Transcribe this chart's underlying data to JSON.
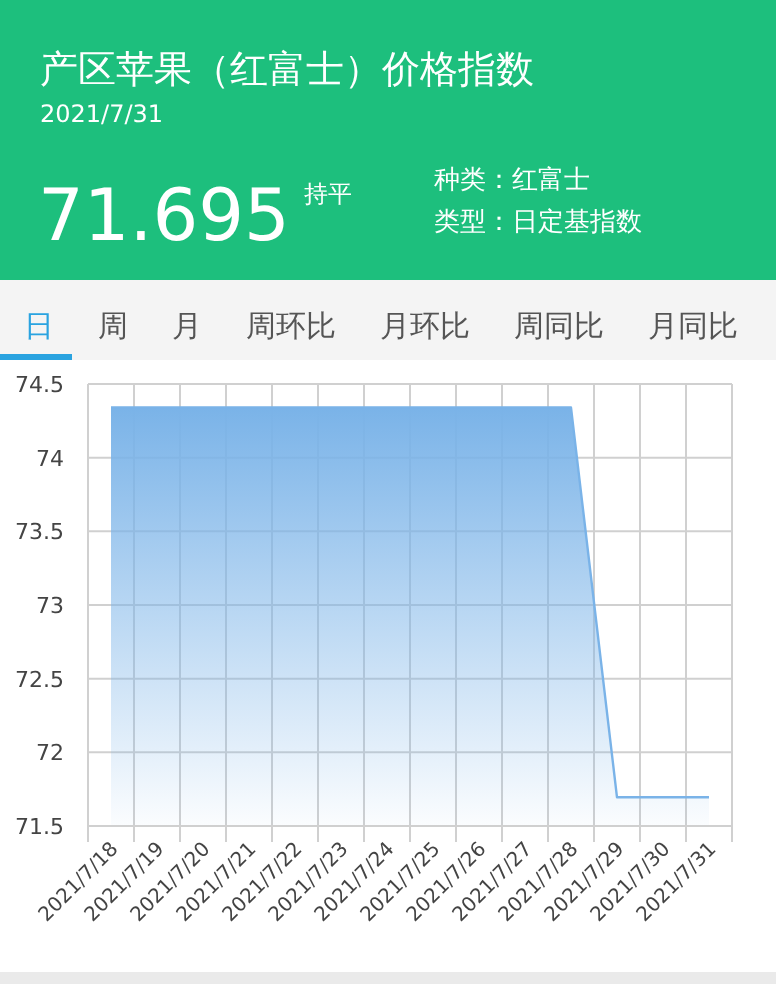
{
  "chart_data": {
    "type": "area",
    "title": "产区苹果（红富士）价格指数",
    "subtitle": "2021/7/31",
    "annotations": [
      "71.695",
      "持平",
      "种类：红富士",
      "类型：日定基指数",
      "日",
      "周",
      "月",
      "周环比",
      "月环比",
      "周同比",
      "月同比"
    ],
    "categories": [
      "2021/7/18",
      "2021/7/19",
      "2021/7/20",
      "2021/7/21",
      "2021/7/22",
      "2021/7/23",
      "2021/7/24",
      "2021/7/25",
      "2021/7/26",
      "2021/7/27",
      "2021/7/28",
      "2021/7/29",
      "2021/7/30",
      "2021/7/31"
    ],
    "series": [
      {
        "color": "#7ab3e8",
        "values": [
          74.34,
          74.34,
          74.34,
          74.34,
          74.34,
          74.34,
          74.34,
          74.34,
          74.34,
          74.34,
          74.34,
          71.695,
          71.695,
          71.695
        ]
      }
    ],
    "ylim": [
      71.5,
      74.5
    ],
    "yticks": [
      71.5,
      72,
      72.5,
      73,
      73.5,
      74,
      74.5
    ],
    "grid": true
  }
}
